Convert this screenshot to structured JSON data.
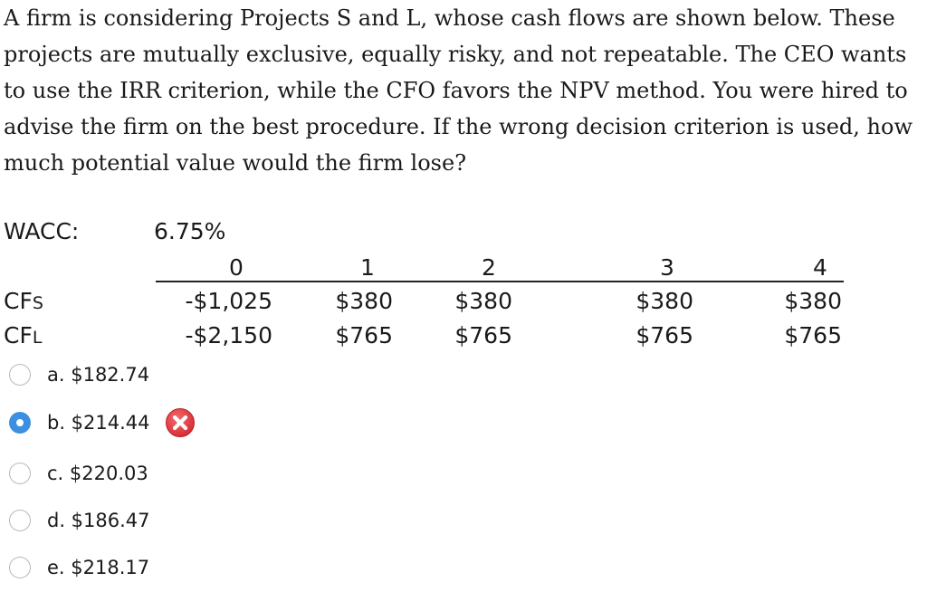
{
  "question": {
    "text": "A firm is considering Projects S and L, whose cash flows are shown below. These projects are mutually exclusive, equally risky, and not repeatable. The CEO wants to use the IRR criterion, while the CFO favors the NPV method. You were hired to advise the firm on the best procedure. If the wrong decision criterion is used, how much potential value would the firm lose?"
  },
  "wacc": {
    "label": "WACC:",
    "value": "6.75%"
  },
  "table": {
    "periods": [
      "0",
      "1",
      "2",
      "3",
      "4"
    ],
    "rows": [
      {
        "label": "CF",
        "sub": "S",
        "values": [
          "-$1,025",
          "$380",
          "$380",
          "$380",
          "$380"
        ]
      },
      {
        "label": "CF",
        "sub": "L",
        "values": [
          "-$2,150",
          "$765",
          "$765",
          "$765",
          "$765"
        ]
      }
    ]
  },
  "options": [
    {
      "text": "a. $182.74",
      "selected": false
    },
    {
      "text": "b. $214.44",
      "selected": true,
      "status_icon": "wrong-x-icon",
      "status_color": "#e0383e"
    },
    {
      "text": "c. $220.03",
      "selected": false
    },
    {
      "text": "d. $186.47",
      "selected": false
    },
    {
      "text": "e. $218.17",
      "selected": false
    }
  ],
  "colors": {
    "selected_radio": "#3d8fe0",
    "wrong_icon": "#e0383e"
  }
}
